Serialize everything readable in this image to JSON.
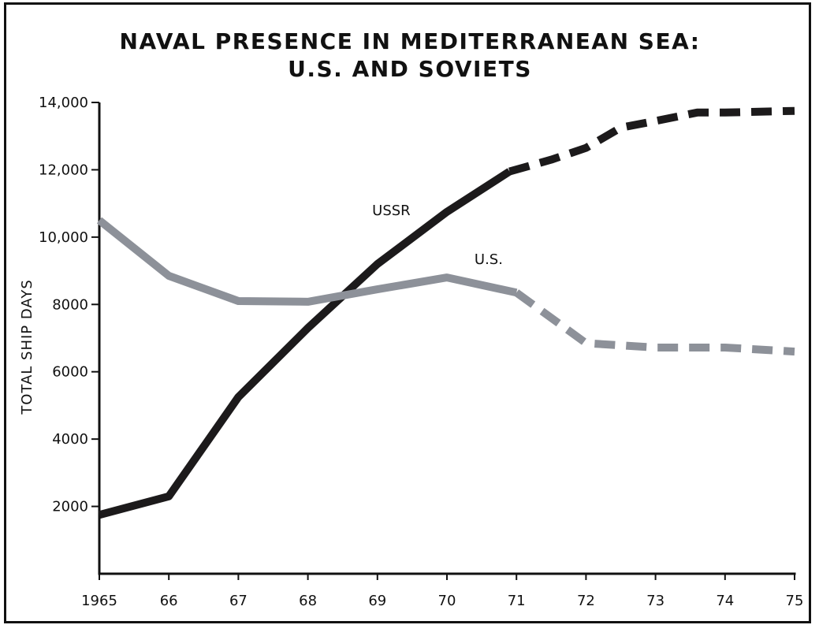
{
  "chart_data": {
    "type": "line",
    "title": [
      "NAVAL PRESENCE IN MEDITERRANEAN SEA:",
      "U.S. AND SOVIETS"
    ],
    "ylabel": "TOTAL SHIP DAYS",
    "xlabel": "",
    "x": [
      1965,
      1966,
      1967,
      1968,
      1969,
      1970,
      1971,
      1972,
      1973,
      1974,
      1975
    ],
    "x_tick_labels": [
      "1965",
      "66",
      "67",
      "68",
      "69",
      "70",
      "71",
      "72",
      "73",
      "74",
      "75"
    ],
    "y_ticks": [
      2000,
      4000,
      6000,
      8000,
      10000,
      12000,
      14000
    ],
    "y_tick_labels": [
      "2000",
      "4000",
      "6000",
      "8000",
      "10,000",
      "12,000",
      "14,000"
    ],
    "xlim": [
      1965,
      1975
    ],
    "ylim": [
      0,
      14000
    ],
    "grid": false,
    "legend": "none",
    "series": [
      {
        "name": "USSR",
        "color": "#1c1a1b",
        "solid": [
          {
            "x": 1965,
            "y": 1750
          },
          {
            "x": 1966,
            "y": 2300
          },
          {
            "x": 1967,
            "y": 5250
          },
          {
            "x": 1968,
            "y": 7300
          },
          {
            "x": 1969,
            "y": 9200
          },
          {
            "x": 1970,
            "y": 10750
          },
          {
            "x": 1970.9,
            "y": 11950
          }
        ],
        "projected": [
          {
            "x": 1970.9,
            "y": 11950
          },
          {
            "x": 1971.5,
            "y": 12300
          },
          {
            "x": 1972,
            "y": 12650
          },
          {
            "x": 1972.5,
            "y": 13250
          },
          {
            "x": 1973,
            "y": 13450
          },
          {
            "x": 1973.6,
            "y": 13700
          },
          {
            "x": 1974,
            "y": 13700
          },
          {
            "x": 1975,
            "y": 13750
          }
        ]
      },
      {
        "name": "U.S.",
        "color": "#8d9199",
        "solid": [
          {
            "x": 1965,
            "y": 10500
          },
          {
            "x": 1966,
            "y": 8850
          },
          {
            "x": 1967,
            "y": 8100
          },
          {
            "x": 1968,
            "y": 8080
          },
          {
            "x": 1969,
            "y": 8450
          },
          {
            "x": 1970,
            "y": 8800
          },
          {
            "x": 1971,
            "y": 8350
          }
        ],
        "projected": [
          {
            "x": 1971,
            "y": 8350
          },
          {
            "x": 1972,
            "y": 6850
          },
          {
            "x": 1973,
            "y": 6720
          },
          {
            "x": 1974,
            "y": 6720
          },
          {
            "x": 1975,
            "y": 6600
          }
        ]
      }
    ],
    "annotations": [
      {
        "text": "USSR",
        "x": 1969.2,
        "y": 10650
      },
      {
        "text": "U.S.",
        "x": 1970.6,
        "y": 9200
      }
    ]
  }
}
